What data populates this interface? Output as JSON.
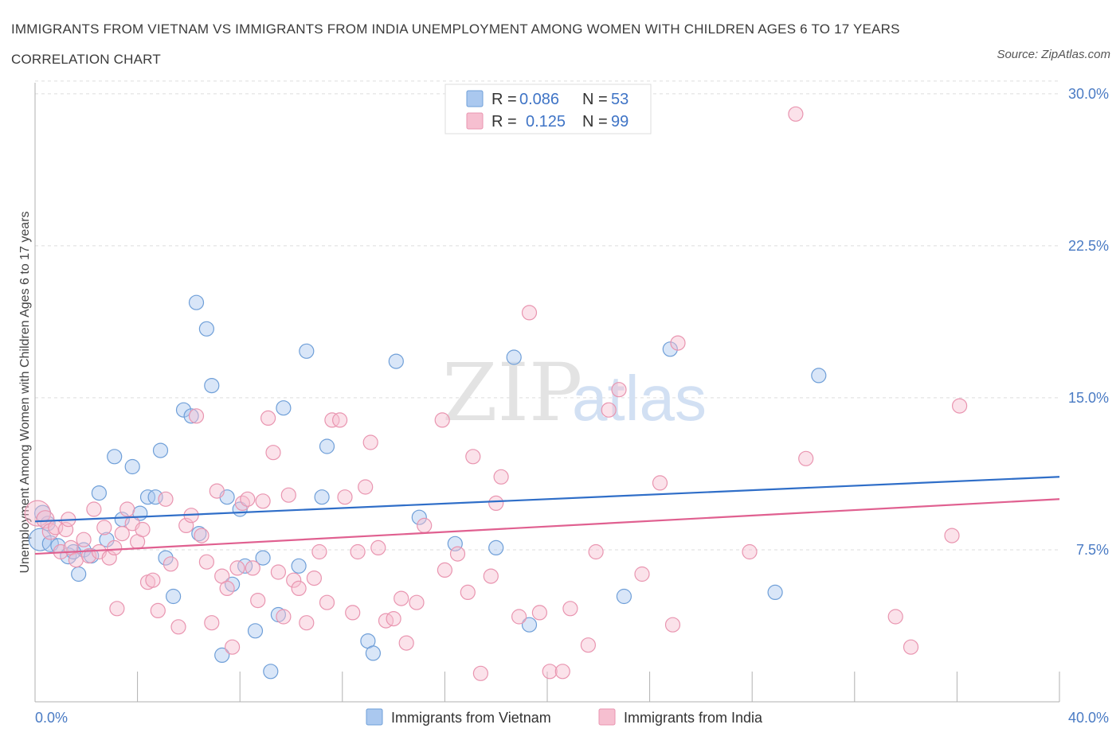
{
  "title": "IMMIGRANTS FROM VIETNAM VS IMMIGRANTS FROM INDIA UNEMPLOYMENT AMONG WOMEN WITH CHILDREN AGES 6 TO 17 YEARS CORRELATION CHART",
  "source": "Source: ZipAtlas.com",
  "watermark": {
    "zip": "ZIP",
    "atlas": "atlas"
  },
  "colors": {
    "vietnam_fill": "#aac8ef",
    "vietnam_stroke": "#6f9fd8",
    "vietnam_line": "#2f6ec8",
    "india_fill": "#f6bfd0",
    "india_stroke": "#e995b0",
    "india_line": "#e06090",
    "grid": "#dddddd",
    "tick_text": "#4a7bc4"
  },
  "legend": {
    "rows": [
      {
        "r_label": "R =",
        "r_value": "0.086",
        "n_label": "N =",
        "n_value": "53"
      },
      {
        "r_label": "R =",
        "r_value": "0.125",
        "n_label": "N =",
        "n_value": "99"
      }
    ]
  },
  "chart_data": {
    "type": "scatter",
    "title": "IMMIGRANTS FROM VIETNAM VS IMMIGRANTS FROM INDIA UNEMPLOYMENT AMONG WOMEN WITH CHILDREN AGES 6 TO 17 YEARS CORRELATION CHART",
    "xlabel": "",
    "ylabel": "Unemployment Among Women with Children Ages 6 to 17 years",
    "xlim": [
      0,
      40
    ],
    "ylim": [
      0,
      30.7
    ],
    "x_tick_labels": [
      "0.0%",
      "40.0%"
    ],
    "y_ticks": [
      7.5,
      15.0,
      22.5,
      30.0
    ],
    "y_tick_labels": [
      "7.5%",
      "15.0%",
      "22.5%",
      "30.0%"
    ],
    "grid": true,
    "legend_position": "top-center",
    "series": [
      {
        "name": "Immigrants from Vietnam",
        "r": 0.086,
        "n": 53,
        "trend": [
          [
            0,
            8.9
          ],
          [
            40,
            11.1
          ]
        ],
        "points": [
          [
            0.2,
            8.0,
            14
          ],
          [
            0.3,
            9.3,
            10
          ],
          [
            0.6,
            7.8,
            10
          ],
          [
            0.9,
            7.7,
            9
          ],
          [
            1.3,
            7.2,
            10
          ],
          [
            1.7,
            6.3,
            9
          ],
          [
            1.9,
            7.5,
            9
          ],
          [
            2.2,
            7.2,
            9
          ],
          [
            2.5,
            10.3,
            9
          ],
          [
            2.8,
            8.0,
            9
          ],
          [
            3.1,
            12.1,
            9
          ],
          [
            3.4,
            9.0,
            9
          ],
          [
            3.8,
            11.6,
            9
          ],
          [
            4.1,
            9.3,
            9
          ],
          [
            4.4,
            10.1,
            9
          ],
          [
            4.7,
            10.1,
            9
          ],
          [
            4.9,
            12.4,
            9
          ],
          [
            5.1,
            7.1,
            9
          ],
          [
            5.4,
            5.2,
            9
          ],
          [
            5.8,
            14.4,
            9
          ],
          [
            6.1,
            14.1,
            9
          ],
          [
            6.3,
            19.7,
            9
          ],
          [
            6.4,
            8.3,
            9
          ],
          [
            6.7,
            18.4,
            9
          ],
          [
            6.9,
            15.6,
            9
          ],
          [
            7.3,
            2.3,
            9
          ],
          [
            7.5,
            10.1,
            9
          ],
          [
            7.7,
            5.8,
            9
          ],
          [
            8.0,
            9.5,
            9
          ],
          [
            8.2,
            6.7,
            9
          ],
          [
            8.6,
            3.5,
            9
          ],
          [
            8.9,
            7.1,
            9
          ],
          [
            9.2,
            1.5,
            9
          ],
          [
            9.5,
            4.3,
            9
          ],
          [
            9.7,
            14.5,
            9
          ],
          [
            10.3,
            6.7,
            9
          ],
          [
            10.6,
            17.3,
            9
          ],
          [
            11.2,
            10.1,
            9
          ],
          [
            11.4,
            12.6,
            9
          ],
          [
            13.0,
            3.0,
            9
          ],
          [
            13.2,
            2.4,
            9
          ],
          [
            14.1,
            16.8,
            9
          ],
          [
            15.0,
            9.1,
            9
          ],
          [
            16.4,
            7.8,
            9
          ],
          [
            18.0,
            7.6,
            9
          ],
          [
            18.7,
            17.0,
            9
          ],
          [
            19.3,
            3.8,
            9
          ],
          [
            23.0,
            5.2,
            9
          ],
          [
            24.8,
            17.4,
            9
          ],
          [
            28.9,
            5.4,
            9
          ],
          [
            30.6,
            16.1,
            9
          ],
          [
            0.5,
            8.8,
            9
          ],
          [
            1.5,
            7.4,
            9
          ]
        ]
      },
      {
        "name": "Immigrants from India",
        "r": 0.125,
        "n": 99,
        "trend": [
          [
            0,
            7.3
          ],
          [
            40,
            10.0
          ]
        ],
        "points": [
          [
            0.1,
            9.3,
            16
          ],
          [
            0.4,
            9.0,
            11
          ],
          [
            0.6,
            8.4,
            10
          ],
          [
            0.8,
            8.6,
            9
          ],
          [
            1.0,
            7.4,
            9
          ],
          [
            1.2,
            8.5,
            9
          ],
          [
            1.4,
            7.6,
            9
          ],
          [
            1.6,
            7.0,
            9
          ],
          [
            1.9,
            8.0,
            9
          ],
          [
            2.1,
            7.2,
            9
          ],
          [
            2.3,
            9.5,
            9
          ],
          [
            2.5,
            7.4,
            9
          ],
          [
            2.7,
            8.6,
            9
          ],
          [
            2.9,
            7.1,
            9
          ],
          [
            3.1,
            7.6,
            9
          ],
          [
            3.2,
            4.6,
            9
          ],
          [
            3.4,
            8.3,
            9
          ],
          [
            3.6,
            9.5,
            9
          ],
          [
            3.8,
            8.8,
            9
          ],
          [
            4.0,
            7.9,
            9
          ],
          [
            4.2,
            8.5,
            9
          ],
          [
            4.4,
            5.9,
            9
          ],
          [
            4.6,
            6.0,
            9
          ],
          [
            4.8,
            4.5,
            9
          ],
          [
            5.1,
            10.0,
            9
          ],
          [
            5.3,
            6.8,
            9
          ],
          [
            5.6,
            3.7,
            9
          ],
          [
            5.9,
            8.7,
            9
          ],
          [
            6.1,
            9.2,
            9
          ],
          [
            6.3,
            14.1,
            9
          ],
          [
            6.5,
            8.2,
            9
          ],
          [
            6.7,
            6.9,
            9
          ],
          [
            6.9,
            3.9,
            9
          ],
          [
            7.1,
            10.4,
            9
          ],
          [
            7.3,
            6.2,
            9
          ],
          [
            7.5,
            5.6,
            9
          ],
          [
            7.7,
            2.7,
            9
          ],
          [
            7.9,
            6.6,
            9
          ],
          [
            8.1,
            9.8,
            9
          ],
          [
            8.3,
            10.0,
            9
          ],
          [
            8.5,
            6.6,
            9
          ],
          [
            8.7,
            5.0,
            9
          ],
          [
            8.9,
            9.9,
            9
          ],
          [
            9.1,
            14.0,
            9
          ],
          [
            9.3,
            12.3,
            9
          ],
          [
            9.5,
            6.4,
            9
          ],
          [
            9.7,
            4.2,
            9
          ],
          [
            9.9,
            10.2,
            9
          ],
          [
            10.1,
            6.0,
            9
          ],
          [
            10.3,
            5.6,
            9
          ],
          [
            10.6,
            3.9,
            9
          ],
          [
            10.9,
            6.1,
            9
          ],
          [
            11.1,
            7.4,
            9
          ],
          [
            11.4,
            4.9,
            9
          ],
          [
            11.6,
            13.9,
            9
          ],
          [
            11.9,
            13.9,
            9
          ],
          [
            12.1,
            10.1,
            9
          ],
          [
            12.4,
            4.4,
            9
          ],
          [
            12.6,
            7.4,
            9
          ],
          [
            12.9,
            10.6,
            9
          ],
          [
            13.1,
            12.8,
            9
          ],
          [
            13.4,
            7.6,
            9
          ],
          [
            13.7,
            4.0,
            9
          ],
          [
            14.0,
            4.1,
            9
          ],
          [
            14.3,
            5.1,
            9
          ],
          [
            14.5,
            2.9,
            9
          ],
          [
            14.9,
            4.9,
            9
          ],
          [
            15.2,
            8.7,
            9
          ],
          [
            15.9,
            13.9,
            9
          ],
          [
            16.0,
            6.5,
            9
          ],
          [
            16.5,
            7.3,
            9
          ],
          [
            16.9,
            5.4,
            9
          ],
          [
            17.1,
            12.1,
            9
          ],
          [
            17.4,
            1.4,
            9
          ],
          [
            17.8,
            6.2,
            9
          ],
          [
            18.0,
            9.8,
            9
          ],
          [
            18.2,
            11.1,
            9
          ],
          [
            18.9,
            4.2,
            9
          ],
          [
            19.3,
            19.2,
            9
          ],
          [
            19.7,
            4.4,
            9
          ],
          [
            20.1,
            1.5,
            9
          ],
          [
            20.6,
            1.5,
            9
          ],
          [
            20.9,
            4.6,
            9
          ],
          [
            21.6,
            2.8,
            9
          ],
          [
            22.4,
            14.4,
            9
          ],
          [
            22.8,
            15.4,
            9
          ],
          [
            24.4,
            10.8,
            9
          ],
          [
            23.7,
            6.3,
            9
          ],
          [
            25.1,
            17.7,
            9
          ],
          [
            24.9,
            3.8,
            9
          ],
          [
            27.9,
            7.4,
            9
          ],
          [
            30.1,
            12.0,
            9
          ],
          [
            29.7,
            29.0,
            9
          ],
          [
            33.6,
            4.2,
            9
          ],
          [
            34.2,
            2.7,
            9
          ],
          [
            35.8,
            8.2,
            9
          ],
          [
            36.1,
            14.6,
            9
          ],
          [
            21.9,
            7.4,
            9
          ],
          [
            1.3,
            9.0,
            9
          ]
        ]
      }
    ]
  },
  "bottom_legend": {
    "items": [
      {
        "label": "Immigrants from Vietnam"
      },
      {
        "label": "Immigrants from India"
      }
    ]
  }
}
